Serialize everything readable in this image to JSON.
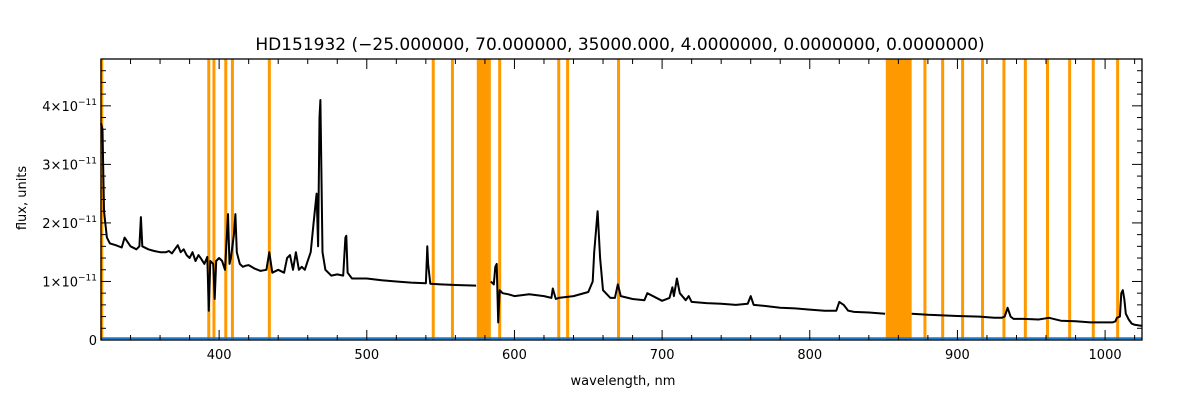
{
  "chart_data": {
    "type": "line",
    "title": "HD151932   (−25.000000, 70.000000, 35000.000, 4.0000000, 0.0000000, 0.0000000)",
    "xlabel": "wavelength, nm",
    "ylabel": "flux, units",
    "xlim": [
      320,
      1025
    ],
    "ylim": [
      0,
      4.8e-11
    ],
    "x_ticks": [
      400,
      500,
      600,
      700,
      800,
      900,
      1000
    ],
    "x_tick_labels": [
      "400",
      "500",
      "600",
      "700",
      "800",
      "900",
      "1000"
    ],
    "y_ticks": [
      0,
      1e-11,
      2e-11,
      3e-11,
      4e-11
    ],
    "y_tick_labels": [
      {
        "mant": "0",
        "exp": ""
      },
      {
        "mant": "1×10",
        "exp": "−11"
      },
      {
        "mant": "2×10",
        "exp": "−11"
      },
      {
        "mant": "3×10",
        "exp": "−11"
      },
      {
        "mant": "4×10",
        "exp": "−11"
      }
    ],
    "grid": false,
    "colors": {
      "spectrum": "#000000",
      "error": "#1f78c8",
      "masked": "#ff9900"
    },
    "masked_lines": [
      320.5,
      393,
      396.5,
      404.5,
      409,
      434,
      545,
      558,
      578,
      590,
      630,
      636,
      670.5,
      878,
      890,
      903.5,
      917,
      931.5,
      946,
      961,
      976,
      992,
      1008.5
    ],
    "masked_bands": [
      [
        574.5,
        584
      ],
      [
        851.5,
        869
      ]
    ],
    "series": [
      {
        "x": [
          320,
          321,
          322,
          324,
          326,
          330,
          334,
          336,
          340,
          344,
          346,
          347,
          348,
          352,
          356,
          360,
          364,
          366,
          368,
          372,
          374,
          376,
          378,
          380,
          382,
          384,
          386,
          388,
          390,
          392,
          393,
          394,
          396,
          397,
          398,
          400,
          402,
          404,
          406,
          407,
          408,
          410,
          411,
          412,
          414,
          416,
          418,
          420,
          424,
          428,
          432,
          434,
          436,
          440,
          444,
          446,
          448,
          450,
          452,
          454,
          456,
          458,
          460,
          462,
          464,
          466,
          467,
          468,
          468.6,
          469.2,
          470,
          472,
          476,
          480,
          484,
          485.5,
          486.1,
          487,
          490,
          500,
          510,
          520,
          530,
          540,
          541,
          541.5,
          543,
          550,
          560,
          574
        ],
        "y": [
          3.7e-11,
          3.6e-11,
          2.2e-11,
          1.75e-11,
          1.65e-11,
          1.62e-11,
          1.58e-11,
          1.75e-11,
          1.6e-11,
          1.55e-11,
          1.6e-11,
          2.1e-11,
          1.6e-11,
          1.55e-11,
          1.52e-11,
          1.5e-11,
          1.5e-11,
          1.52e-11,
          1.48e-11,
          1.62e-11,
          1.5e-11,
          1.55e-11,
          1.45e-11,
          1.4e-11,
          1.5e-11,
          1.35e-11,
          1.45e-11,
          1.38e-11,
          1.3e-11,
          1.42e-11,
          5e-12,
          1.35e-11,
          1.3e-11,
          7e-12,
          1.35e-11,
          1.4e-11,
          1.35e-11,
          1.2e-11,
          2.15e-11,
          1.3e-11,
          1.4e-11,
          1.8e-11,
          2.15e-11,
          1.5e-11,
          1.3e-11,
          1.25e-11,
          1.27e-11,
          1.28e-11,
          1.22e-11,
          1.18e-11,
          1.2e-11,
          1.5e-11,
          1.15e-11,
          1.2e-11,
          1.15e-11,
          1.4e-11,
          1.45e-11,
          1.2e-11,
          1.5e-11,
          1.2e-11,
          1.25e-11,
          1.2e-11,
          1.35e-11,
          1.5e-11,
          2e-11,
          2.5e-11,
          1.6e-11,
          3.8e-11,
          4.1e-11,
          3e-11,
          1.5e-11,
          1.2e-11,
          1.1e-11,
          1.12e-11,
          1.1e-11,
          1.75e-11,
          1.78e-11,
          1.15e-11,
          1.05e-11,
          1.05e-11,
          1.02e-11,
          1e-11,
          9.8e-12,
          9.7e-12,
          1.6e-11,
          1.3e-11,
          9.6e-12,
          9.5e-12,
          9.4e-12,
          9.3e-12
        ]
      },
      {
        "x": [
          584,
          586,
          587,
          588,
          589,
          590,
          592,
          596,
          600,
          610,
          620,
          625,
          626,
          628,
          630,
          640,
          650,
          653,
          654,
          656.3,
          658,
          660,
          665,
          668,
          670,
          672,
          680,
          688,
          690,
          700,
          705,
          707,
          708,
          710,
          712,
          716,
          718,
          720,
          730,
          740,
          750,
          758,
          760,
          762,
          770,
          780,
          790,
          800,
          810,
          818,
          820,
          823,
          826,
          830,
          840,
          851
        ],
        "y": [
          1e-11,
          9.5e-12,
          1.25e-11,
          1.3e-11,
          3e-12,
          8.5e-12,
          8e-12,
          7.8e-12,
          7.5e-12,
          7.8e-12,
          7.5e-12,
          7.2e-12,
          8.8e-12,
          7e-12,
          7.2e-12,
          7.5e-12,
          8.2e-12,
          1e-11,
          1.5e-11,
          2.2e-11,
          1.4e-11,
          8.5e-12,
          7.2e-12,
          7.2e-12,
          9.5e-12,
          7.5e-12,
          7e-12,
          6.8e-12,
          8e-12,
          6.7e-12,
          7.2e-12,
          9e-12,
          7.5e-12,
          1.05e-11,
          8e-12,
          6.8e-12,
          7.5e-12,
          6.5e-12,
          6.3e-12,
          6.2e-12,
          6e-12,
          6.2e-12,
          7.5e-12,
          6e-12,
          5.8e-12,
          5.5e-12,
          5.4e-12,
          5.2e-12,
          5e-12,
          5e-12,
          6.5e-12,
          6e-12,
          5e-12,
          4.8e-12,
          4.7e-12,
          4.5e-12
        ]
      },
      {
        "x": [
          869,
          880,
          890,
          900,
          915,
          925,
          930,
          932,
          934,
          936,
          938,
          945,
          955,
          962,
          970,
          980,
          990,
          1000,
          1005,
          1007,
          1008,
          1010,
          1011,
          1012,
          1013,
          1014,
          1016,
          1018,
          1020,
          1025
        ],
        "y": [
          4.5e-12,
          4.3e-12,
          4.2e-12,
          4.1e-12,
          4e-12,
          3.8e-12,
          3.8e-12,
          4e-12,
          5.5e-12,
          4e-12,
          3.6e-12,
          3.6e-12,
          3.5e-12,
          3.8e-12,
          3.3e-12,
          3.2e-12,
          3e-12,
          3e-12,
          3e-12,
          3.2e-12,
          3.8e-12,
          4e-12,
          8e-12,
          8.5e-12,
          7e-12,
          4.5e-12,
          3.5e-12,
          2.8e-12,
          2.6e-12,
          2.4e-12
        ]
      }
    ],
    "error_level": 3e-13
  }
}
